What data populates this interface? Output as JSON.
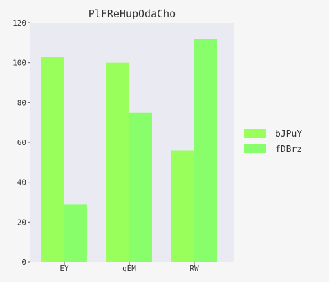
{
  "chart_data": {
    "type": "bar",
    "title": "PlFReHupOdaCho",
    "xlabel": "",
    "ylabel": "",
    "categories": [
      "EY",
      "qEM",
      "RW"
    ],
    "series": [
      {
        "name": "bJPuY",
        "values": [
          103,
          100,
          56
        ],
        "color": "#99ff5a"
      },
      {
        "name": "fDBrz",
        "values": [
          29,
          75,
          112
        ],
        "color": "#88ff6a"
      }
    ],
    "ylim": [
      0,
      120
    ],
    "yticks": [
      0,
      20,
      40,
      60,
      80,
      100,
      120
    ],
    "grid": false,
    "legend_position": "right",
    "plot_background": "#eaeaf2",
    "page_background": "#f6f6f6"
  }
}
